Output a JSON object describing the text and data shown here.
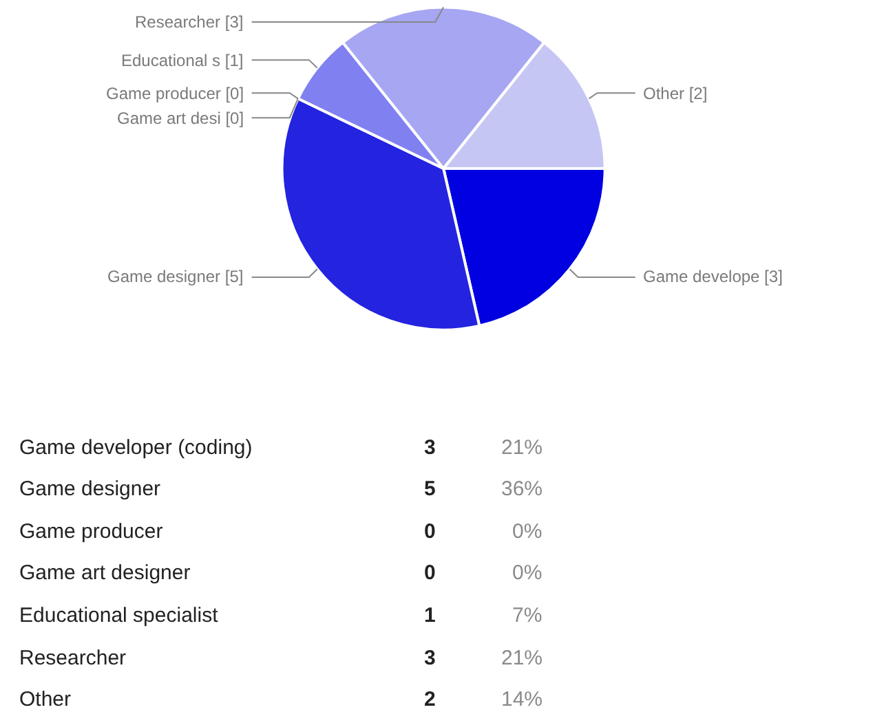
{
  "chart_data": [
    {
      "type": "pie",
      "categories": [
        "Game develope [3]",
        "Game designer [5]",
        "Game producer [0]",
        "Game art desi [0]",
        "Educational s [1]",
        "Researcher [3]",
        "Other [2]"
      ],
      "values": [
        3,
        5,
        0,
        0,
        1,
        3,
        2
      ],
      "colors": [
        "#0000e0",
        "#2323e0",
        "#5050e8",
        "#6868ec",
        "#8080f0",
        "#a6a6f2",
        "#c6c6f5"
      ]
    },
    {
      "type": "other",
      "categories": [
        "Game developer (coding)",
        "Game designer",
        "Game producer",
        "Game art designer",
        "Educational specialist",
        "Researcher",
        "Other"
      ],
      "values": [
        3,
        5,
        0,
        0,
        1,
        3,
        2
      ],
      "data_labels": true,
      "annotations": [
        "21%",
        "36%",
        "0%",
        "0%",
        "7%",
        "21%",
        "14%"
      ]
    }
  ]
}
